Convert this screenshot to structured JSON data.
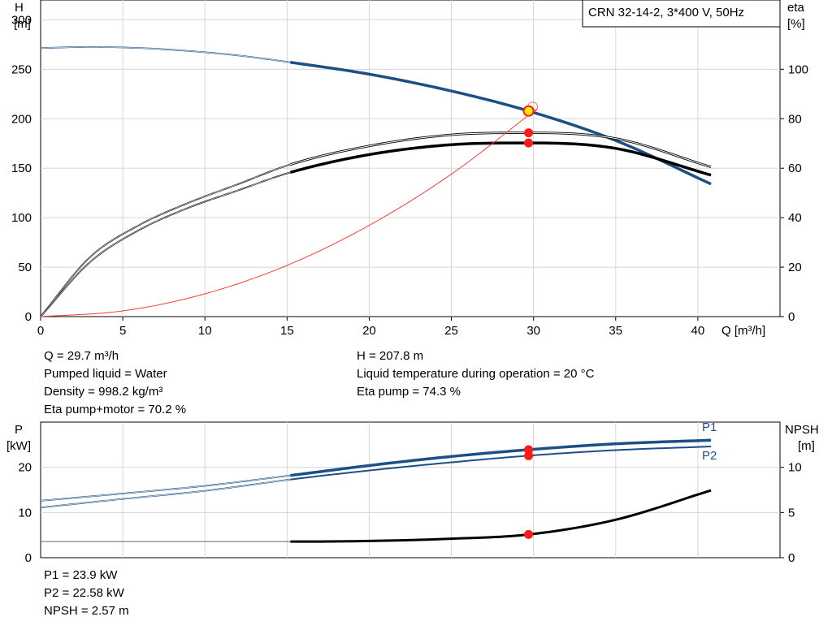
{
  "chart_data": [
    {
      "type": "line",
      "title": "CRN 32-14-2, 3*400 V, 50Hz",
      "x_axis": {
        "label": "Q [m³/h]",
        "range": [
          0,
          45
        ],
        "ticks": [
          0,
          5,
          10,
          15,
          20,
          25,
          30,
          35,
          40
        ]
      },
      "left_axis": {
        "label_top": "H",
        "label_unit": "[m]",
        "range": [
          0,
          320
        ],
        "ticks": [
          0,
          50,
          100,
          150,
          200,
          250,
          300
        ]
      },
      "right_axis": {
        "label_top": "eta",
        "label_unit": "[%]",
        "range": [
          0,
          128
        ],
        "ticks": [
          0,
          20,
          40,
          60,
          80,
          100
        ]
      },
      "grid": true,
      "series": [
        {
          "id": "H",
          "axis": "left",
          "color": "#1b4f86",
          "x": [
            0,
            3,
            6,
            9,
            12,
            15.2,
            20,
            25,
            29.7,
            35,
            40.8
          ],
          "y": [
            271.5,
            272.5,
            271.5,
            268.5,
            264,
            257,
            245,
            228,
            207.8,
            178,
            134
          ]
        },
        {
          "id": "eta_pump",
          "axis": "right",
          "color": "#000000",
          "x": [
            0,
            3,
            6,
            9,
            12,
            15.2,
            20,
            25,
            29.7,
            35,
            40.8
          ],
          "y": [
            0,
            24,
            37,
            46,
            53.5,
            61.5,
            69,
            73.5,
            74.3,
            72,
            60.5
          ]
        },
        {
          "id": "eta_pump_motor",
          "axis": "right",
          "color": "#000000",
          "x": [
            0,
            3,
            6,
            9,
            12,
            15.2,
            20,
            25,
            29.7,
            35,
            40.8
          ],
          "y": [
            0,
            22,
            35,
            44,
            51,
            58.3,
            65.5,
            69.5,
            70.2,
            68,
            57.2
          ]
        },
        {
          "id": "system_curve",
          "axis": "right",
          "color": "#ff3b3b",
          "x": [
            0,
            5,
            10,
            15,
            20,
            25,
            30.2
          ],
          "y": [
            0,
            2.3,
            9.2,
            20.7,
            36.9,
            57.6,
            84
          ]
        }
      ],
      "operating_point": {
        "x": 29.7,
        "H": 207.8,
        "eta_pump": 74.3,
        "eta_pump_motor": 70.2
      }
    },
    {
      "type": "line",
      "x_axis": {
        "range": [
          0,
          45
        ],
        "ticks": [
          0,
          5,
          10,
          15,
          20,
          25,
          30,
          35,
          40
        ]
      },
      "left_axis": {
        "label_top": "P",
        "label_unit": "[kW]",
        "range": [
          0,
          30
        ],
        "ticks": [
          0,
          10,
          20
        ]
      },
      "right_axis": {
        "label_top": "NPSH",
        "label_unit": "[m]",
        "range": [
          0,
          15
        ],
        "ticks": [
          0,
          5,
          10
        ]
      },
      "grid": true,
      "series": [
        {
          "id": "P1",
          "name": "P1",
          "axis": "left",
          "color": "#1b4f86",
          "x": [
            0,
            5,
            10,
            15.2,
            20,
            25,
            29.7,
            35,
            40.8
          ],
          "y": [
            12.6,
            14.2,
            15.9,
            18.2,
            20.4,
            22.4,
            23.9,
            25.2,
            26
          ]
        },
        {
          "id": "P2",
          "name": "P2",
          "axis": "left",
          "color": "#1b4f86",
          "x": [
            0,
            5,
            10,
            15.2,
            20,
            25,
            29.7,
            35,
            40.8
          ],
          "y": [
            11.1,
            13,
            14.8,
            17.3,
            19.3,
            21.1,
            22.58,
            23.8,
            24.6
          ]
        },
        {
          "id": "NPSH",
          "axis": "right",
          "color": "#000000",
          "x": [
            0,
            15.2,
            20,
            25,
            29.7,
            35,
            40.8
          ],
          "y": [
            1.78,
            1.78,
            1.85,
            2.1,
            2.57,
            4.2,
            7.45
          ]
        }
      ],
      "operating_point": {
        "x": 29.7,
        "P1": 23.9,
        "P2": 22.58,
        "NPSH": 2.57
      }
    }
  ],
  "info_top_left": [
    "Q = 29.7 m³/h",
    "Pumped liquid = Water",
    "Density = 998.2 kg/m³",
    "Eta pump+motor = 70.2 %"
  ],
  "info_top_right": [
    "H = 207.8 m",
    "Liquid temperature during operation = 20 °C",
    "Eta pump = 74.3 %"
  ],
  "info_bottom": [
    "P1 = 23.9 kW",
    "P2 = 22.58 kW",
    "NPSH = 2.57 m"
  ]
}
